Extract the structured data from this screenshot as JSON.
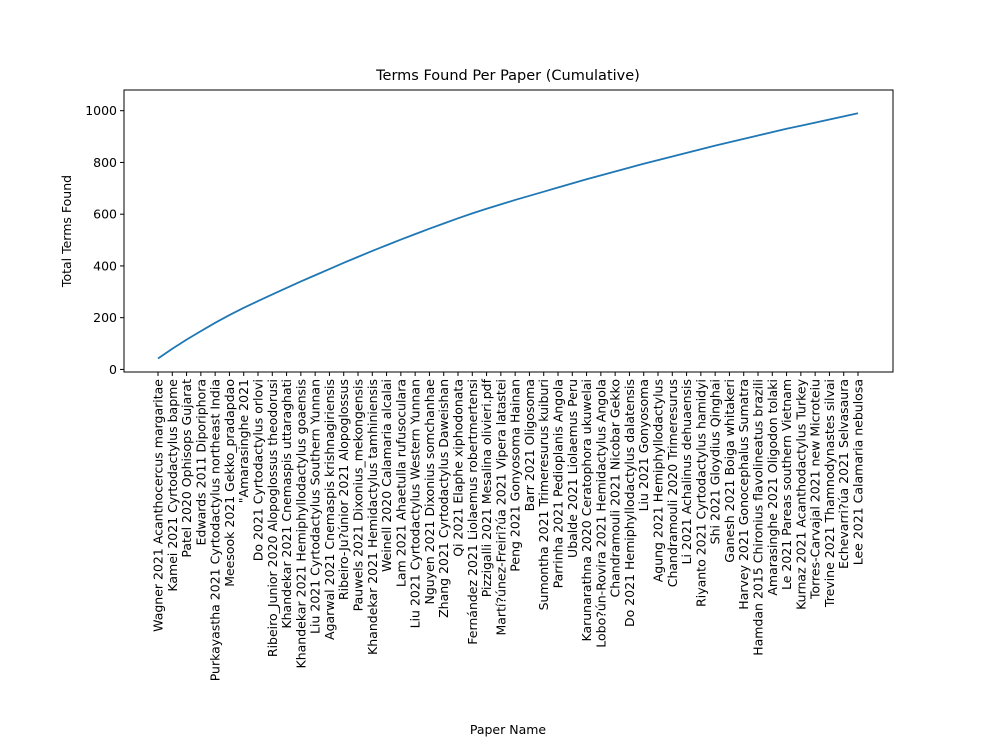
{
  "chart_data": {
    "type": "line",
    "title": "Terms Found Per Paper (Cumulative)",
    "xlabel": "Paper Name",
    "ylabel": "Total Terms Found",
    "ylim": [
      -10,
      1080
    ],
    "yticks": [
      0,
      200,
      400,
      600,
      800,
      1000
    ],
    "grid": false,
    "line_color": "#1f77b4",
    "categories": [
      "Wagner 2021 Acanthocercus margaritae",
      "Kamei 2021 Cyrtodactylus bapme",
      "Patel 2020 Ophisops Gujarat",
      "Edwards 2011 Diporiphora",
      "Purkayastha 2021 Cyrtodactylus northeast India",
      "Meesook 2021 Gekko_pradapdao",
      "\"Amarasinghe 2021",
      "Do 2021 Cyrtodactylus orlovi",
      "Ribeiro_Junior 2020 Alopoglossus theodorusi",
      "Khandekar 2021 Cnemaspis uttaraghati",
      "Khandekar 2021 Hemiphyllodactylus goaensis",
      "Liu 2021 Cyrtodactylus Southern Yunnan",
      "Agarwal 2021 Cnemaspis krishnagiriensis",
      "Ribeiro-Ju?únior 2021 Alopoglossus",
      "Pauwels 2021 Dixonius_mekongensis",
      "Khandekar 2021 Hemidactylus tamhiniensis",
      "Weinell 2020 Calamaria alcalai",
      "Lam 2021 Ahaetulla rufusoculara",
      "Liu 2021 Cyrtodactylus Western Yunnan",
      "Nguyen 2021 Dixonius somchanhae",
      "Zhang 2021 Cyrtodactylus Daweishan",
      "Qi 2021 Elaphe xiphodonata",
      "Fernández 2021 Liolaemus robertmertensi",
      "Pizzigalli 2021 Mesalina olivieri.pdf",
      "Martí?únez-Freiri?úa 2021 Vipera latastei",
      "Peng 2021 Gonyosoma Hainan",
      "Barr 2021 Oligosoma",
      "Sumontha 2021 Trimeresurus kuiburi",
      "Parrinha 2021 Pedioplanis Angola",
      "Ubalde 2021 Liolaemus Peru",
      "Karunarathna 2020 Ceratophora ukuwelai",
      "Lobo?ún-Rovira 2021 Hemidactylus Angola",
      "Chandramouli 2021 Nicobar Gekko",
      "Do 2021 Hemiphyllodactylus dalatensis",
      "Liu 2021 Gonyosoma",
      "Agung 2021 Hemiphyllodactylus",
      "Chandramouli 2020 Trimeresurus",
      "Li 2021 Achalinus dehuaensis",
      "Riyanto 2021 Cyrtodactylus hamidyi",
      "Shi 2021 Gloydius Qinghai",
      "Ganesh 2021 Boiga whitakeri",
      "Harvey 2021 Gonocephalus Sumatra",
      "Hamdan 2015 Chironius flavolineatus brazili",
      "Amarasinghe 2021 Oligodon tolaki",
      "Le 2021 Pareas southern Vietnam",
      "Kurnaz 2021 Acanthodactylus Turkey",
      "Torres-Carvajal 2021 new Microteiu",
      "Trevine 2021 Thamnodynastes silvai",
      "Echevarri?úa 2021 Selvasaura",
      "Lee 2021 Calamaria nebulosa"
    ],
    "values": [
      42,
      80,
      115,
      148,
      180,
      210,
      238,
      264,
      290,
      315,
      340,
      364,
      388,
      412,
      435,
      458,
      480,
      502,
      523,
      544,
      564,
      584,
      603,
      621,
      638,
      655,
      671,
      687,
      703,
      719,
      735,
      750,
      765,
      780,
      795,
      809,
      823,
      837,
      851,
      865,
      878,
      891,
      904,
      917,
      930,
      942,
      954,
      966,
      978,
      990
    ]
  }
}
